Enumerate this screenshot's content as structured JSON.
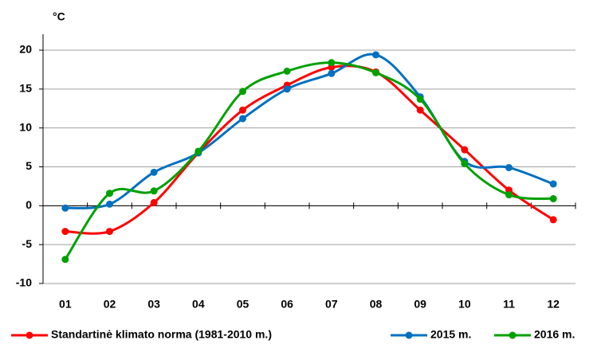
{
  "chart_data": {
    "type": "line",
    "y_label": "°C",
    "categories": [
      "01",
      "02",
      "03",
      "04",
      "05",
      "06",
      "07",
      "08",
      "09",
      "10",
      "11",
      "12"
    ],
    "series": [
      {
        "name": "Standartinė klimato norma (1981-2010 m.)",
        "color": "#ff0000",
        "values": [
          -3.3,
          -3.3,
          0.4,
          6.8,
          12.3,
          15.5,
          17.8,
          17.2,
          12.3,
          7.2,
          2.0,
          -1.8
        ]
      },
      {
        "name": "2015 m.",
        "color": "#0070c0",
        "values": [
          -0.3,
          0.2,
          4.3,
          6.8,
          11.2,
          15.0,
          17.0,
          19.4,
          14.0,
          5.7,
          4.9,
          2.8
        ]
      },
      {
        "name": "2016 m.",
        "color": "#00a000",
        "values": [
          -6.9,
          1.6,
          1.9,
          7.0,
          14.7,
          17.3,
          18.4,
          17.1,
          13.7,
          5.4,
          1.4,
          0.9
        ]
      }
    ],
    "ylim": [
      -10,
      20
    ],
    "yticks": [
      -10,
      -5,
      0,
      5,
      10,
      15,
      20
    ],
    "grid": true,
    "legend": "bottom"
  }
}
